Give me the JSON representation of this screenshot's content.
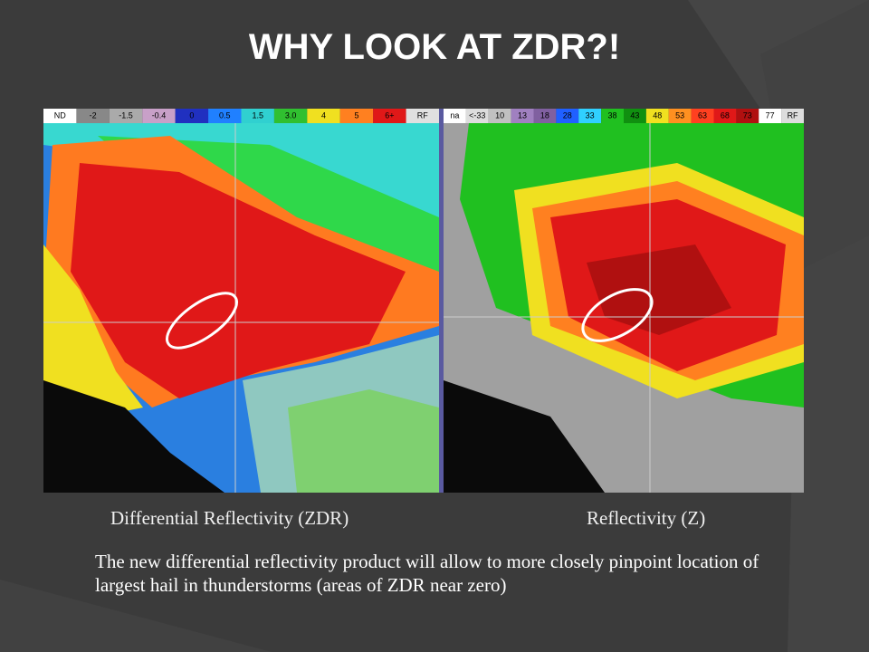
{
  "slide": {
    "title": "WHY LOOK AT ZDR?!",
    "left_image": {
      "scale_labels": [
        "ND",
        "-2",
        "-1.5",
        "-0.4",
        "0",
        "0.5",
        "1.5",
        "3.0",
        "4",
        "5",
        "6+",
        "RF"
      ],
      "caption": "Differential Reflectivity (ZDR)"
    },
    "right_image": {
      "scale_labels": [
        "na",
        "<-33",
        "10",
        "13",
        "18",
        "28",
        "33",
        "38",
        "43",
        "48",
        "53",
        "63",
        "68",
        "73",
        "77",
        "RF"
      ],
      "caption": "Reflectivity (Z)"
    },
    "body": "The new differential reflectivity product will allow to more closely pinpoint location of largest hail in thunderstorms (areas of ZDR near zero)"
  }
}
